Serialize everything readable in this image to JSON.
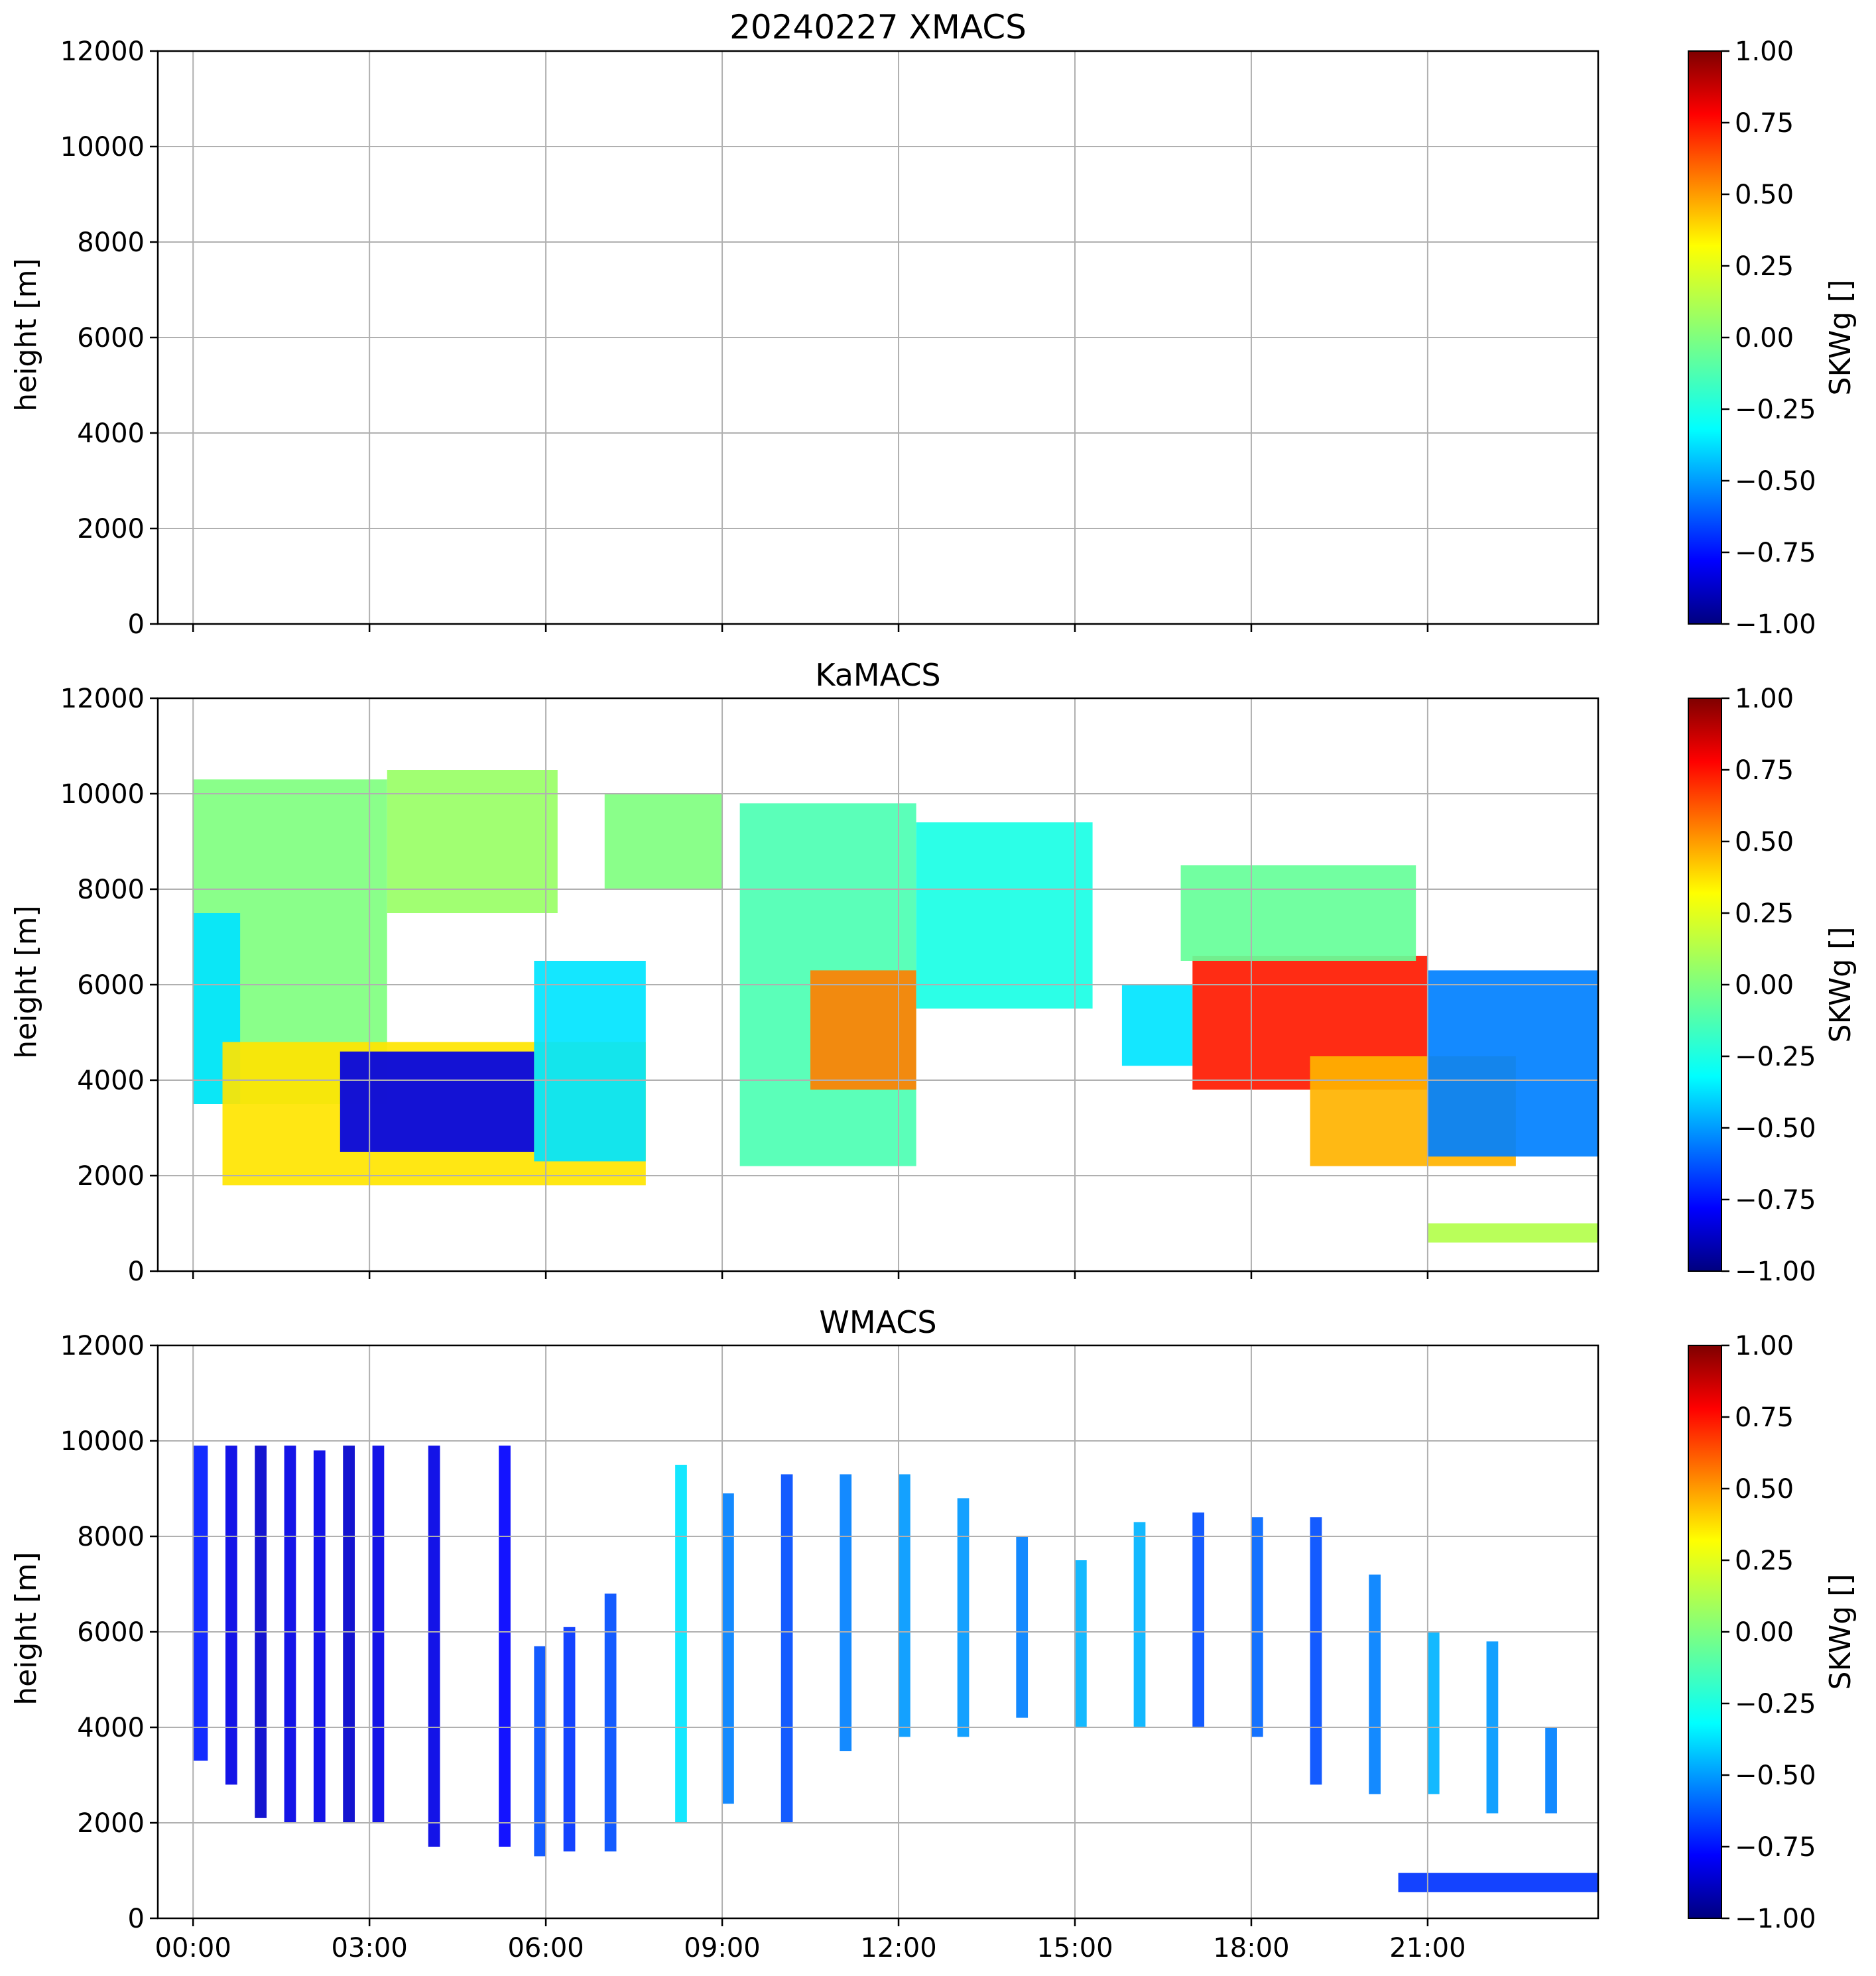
{
  "figure_title": "20240227 XMACS",
  "chart_data": [
    {
      "type": "heatmap",
      "panel": "XMACS",
      "title": "",
      "ylabel": "height [m]",
      "xlabel": "",
      "ylim": [
        0,
        12000
      ],
      "yticks": [
        "0",
        "2000",
        "4000",
        "6000",
        "8000",
        "10000",
        "12000"
      ],
      "xticks": [],
      "colorbar": {
        "label": "SKWg []",
        "range": [
          -1.0,
          1.0
        ],
        "ticks": [
          "1.00",
          "0.75",
          "0.50",
          "0.25",
          "0.00",
          "−0.25",
          "−0.50",
          "−0.75",
          "−1.00"
        ],
        "colormap": "jet"
      },
      "blobs": []
    },
    {
      "type": "heatmap",
      "panel": "KaMACS",
      "title": "KaMACS",
      "ylabel": "height [m]",
      "xlabel": "",
      "ylim": [
        0,
        12000
      ],
      "yticks": [
        "0",
        "2000",
        "4000",
        "6000",
        "8000",
        "10000",
        "12000"
      ],
      "xticks": [],
      "colorbar": {
        "label": "SKWg []",
        "range": [
          -1.0,
          1.0
        ],
        "ticks": [
          "1.00",
          "0.75",
          "0.50",
          "0.25",
          "0.00",
          "−0.25",
          "−0.50",
          "−0.75",
          "−1.00"
        ],
        "colormap": "jet"
      },
      "blobs": [
        {
          "t0": 0.0,
          "t1": 3.3,
          "h0": 3500,
          "h1": 10300,
          "value": 0.0
        },
        {
          "t0": 3.3,
          "t1": 6.2,
          "h0": 7500,
          "h1": 10500,
          "value": 0.05
        },
        {
          "t0": 0.0,
          "t1": 0.8,
          "h0": 3500,
          "h1": 7500,
          "value": -0.3
        },
        {
          "t0": 0.5,
          "t1": 7.7,
          "h0": 1800,
          "h1": 4800,
          "value": 0.3
        },
        {
          "t0": 2.5,
          "t1": 5.8,
          "h0": 2500,
          "h1": 4600,
          "value": -0.8
        },
        {
          "t0": 5.8,
          "t1": 7.7,
          "h0": 2300,
          "h1": 6500,
          "value": -0.3
        },
        {
          "t0": 7.0,
          "t1": 9.0,
          "h0": 8000,
          "h1": 10000,
          "value": 0.0
        },
        {
          "t0": 9.3,
          "t1": 12.3,
          "h0": 2200,
          "h1": 9800,
          "value": -0.1
        },
        {
          "t0": 10.5,
          "t1": 12.3,
          "h0": 3800,
          "h1": 6300,
          "value": 0.5
        },
        {
          "t0": 12.3,
          "t1": 15.3,
          "h0": 5500,
          "h1": 9400,
          "value": -0.2
        },
        {
          "t0": 15.8,
          "t1": 17.0,
          "h0": 4300,
          "h1": 6000,
          "value": -0.3
        },
        {
          "t0": 17.0,
          "t1": 21.0,
          "h0": 3800,
          "h1": 6600,
          "value": 0.7
        },
        {
          "t0": 16.8,
          "t1": 20.8,
          "h0": 6500,
          "h1": 8500,
          "value": -0.05
        },
        {
          "t0": 19.0,
          "t1": 22.5,
          "h0": 2200,
          "h1": 4500,
          "value": 0.4
        },
        {
          "t0": 21.0,
          "t1": 24.0,
          "h0": 2400,
          "h1": 6300,
          "value": -0.5
        },
        {
          "t0": 21.0,
          "t1": 24.0,
          "h0": 600,
          "h1": 1000,
          "value": 0.1
        }
      ]
    },
    {
      "type": "heatmap",
      "panel": "WMACS",
      "title": "WMACS",
      "ylabel": "height [m]",
      "xlabel": "",
      "ylim": [
        0,
        12000
      ],
      "yticks": [
        "0",
        "2000",
        "4000",
        "6000",
        "8000",
        "10000",
        "12000"
      ],
      "xticks": [
        "00:00",
        "03:00",
        "06:00",
        "09:00",
        "12:00",
        "15:00",
        "18:00",
        "21:00"
      ],
      "colorbar": {
        "label": "SKWg []",
        "range": [
          -1.0,
          1.0
        ],
        "ticks": [
          "1.00",
          "0.75",
          "0.50",
          "0.25",
          "0.00",
          "−0.25",
          "−0.50",
          "−0.75",
          "−1.00"
        ],
        "colormap": "jet"
      },
      "blobs": [
        {
          "t0": 0.0,
          "t1": 0.25,
          "h0": 3300,
          "h1": 9900,
          "value": -0.7
        },
        {
          "t0": 0.55,
          "t1": 0.75,
          "h0": 2800,
          "h1": 9900,
          "value": -0.8
        },
        {
          "t0": 1.05,
          "t1": 1.25,
          "h0": 2100,
          "h1": 9900,
          "value": -0.85
        },
        {
          "t0": 1.55,
          "t1": 1.75,
          "h0": 2000,
          "h1": 9900,
          "value": -0.8
        },
        {
          "t0": 2.05,
          "t1": 2.25,
          "h0": 2000,
          "h1": 9800,
          "value": -0.8
        },
        {
          "t0": 2.55,
          "t1": 2.75,
          "h0": 2000,
          "h1": 9900,
          "value": -0.85
        },
        {
          "t0": 3.05,
          "t1": 3.25,
          "h0": 2000,
          "h1": 9900,
          "value": -0.8
        },
        {
          "t0": 4.0,
          "t1": 4.2,
          "h0": 1500,
          "h1": 9900,
          "value": -0.8
        },
        {
          "t0": 5.2,
          "t1": 5.4,
          "h0": 1500,
          "h1": 9900,
          "value": -0.75
        },
        {
          "t0": 5.8,
          "t1": 6.0,
          "h0": 1300,
          "h1": 5700,
          "value": -0.6
        },
        {
          "t0": 6.3,
          "t1": 6.5,
          "h0": 1400,
          "h1": 6100,
          "value": -0.65
        },
        {
          "t0": 7.0,
          "t1": 7.2,
          "h0": 1400,
          "h1": 6800,
          "value": -0.6
        },
        {
          "t0": 8.2,
          "t1": 8.4,
          "h0": 2000,
          "h1": 9500,
          "value": -0.3
        },
        {
          "t0": 9.0,
          "t1": 9.2,
          "h0": 2400,
          "h1": 8900,
          "value": -0.5
        },
        {
          "t0": 10.0,
          "t1": 10.2,
          "h0": 2000,
          "h1": 9300,
          "value": -0.6
        },
        {
          "t0": 11.0,
          "t1": 11.2,
          "h0": 3500,
          "h1": 9300,
          "value": -0.5
        },
        {
          "t0": 12.0,
          "t1": 12.2,
          "h0": 3800,
          "h1": 9300,
          "value": -0.45
        },
        {
          "t0": 13.0,
          "t1": 13.2,
          "h0": 3800,
          "h1": 8800,
          "value": -0.45
        },
        {
          "t0": 14.0,
          "t1": 14.2,
          "h0": 4200,
          "h1": 8000,
          "value": -0.5
        },
        {
          "t0": 15.0,
          "t1": 15.2,
          "h0": 4000,
          "h1": 7500,
          "value": -0.4
        },
        {
          "t0": 16.0,
          "t1": 16.2,
          "h0": 4000,
          "h1": 8300,
          "value": -0.4
        },
        {
          "t0": 17.0,
          "t1": 17.2,
          "h0": 4000,
          "h1": 8500,
          "value": -0.6
        },
        {
          "t0": 18.0,
          "t1": 18.2,
          "h0": 3800,
          "h1": 8400,
          "value": -0.55
        },
        {
          "t0": 19.0,
          "t1": 19.2,
          "h0": 2800,
          "h1": 8400,
          "value": -0.6
        },
        {
          "t0": 20.0,
          "t1": 20.2,
          "h0": 2600,
          "h1": 7200,
          "value": -0.5
        },
        {
          "t0": 21.0,
          "t1": 21.2,
          "h0": 2600,
          "h1": 6000,
          "value": -0.4
        },
        {
          "t0": 22.0,
          "t1": 22.2,
          "h0": 2200,
          "h1": 5800,
          "value": -0.45
        },
        {
          "t0": 23.0,
          "t1": 23.2,
          "h0": 2200,
          "h1": 4000,
          "value": -0.5
        },
        {
          "t0": 20.5,
          "t1": 24.0,
          "h0": 550,
          "h1": 950,
          "value": -0.65
        }
      ]
    }
  ]
}
